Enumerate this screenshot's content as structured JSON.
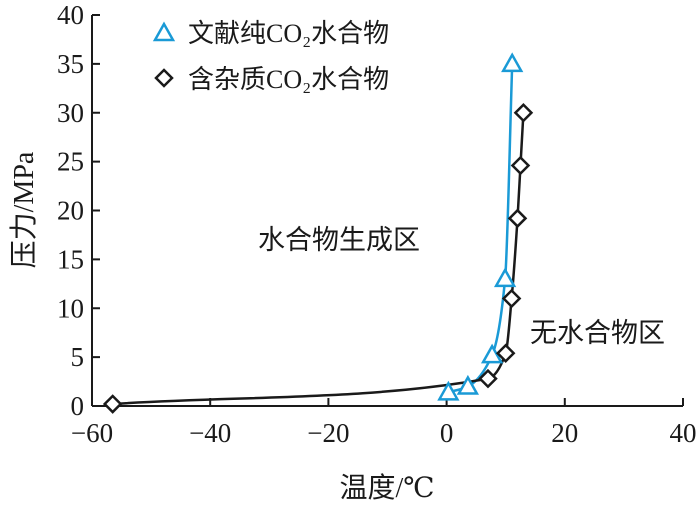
{
  "chart_data": {
    "type": "line",
    "xlabel": "温度/℃",
    "ylabel": "压力/MPa",
    "xlim": [
      -60,
      40
    ],
    "ylim": [
      0,
      40
    ],
    "xticks": [
      "−60",
      "−40",
      "−20",
      "0",
      "20",
      "40"
    ],
    "yticks": [
      "0",
      "5",
      "10",
      "15",
      "20",
      "25",
      "30",
      "35",
      "40"
    ],
    "legend": {
      "placement": "top-center"
    },
    "series": [
      {
        "name": "文献纯CO₂水合物",
        "marker": "triangle",
        "color": "#1a9ad6",
        "x": [
          0.3,
          3.6,
          7.7,
          9.9,
          11.1
        ],
        "y": [
          1.4,
          2.0,
          5.2,
          13.0,
          35.0
        ]
      },
      {
        "name": "含杂质CO₂水合物",
        "marker": "diamond",
        "color": "#1a1a1a",
        "x": [
          -56.5,
          7.0,
          10.0,
          11.0,
          12.0,
          12.5,
          13.0
        ],
        "y": [
          0.2,
          2.8,
          5.4,
          11.0,
          19.2,
          24.6,
          30.0
        ]
      }
    ],
    "annotations": [
      "水合物生成区",
      "无水合物区"
    ]
  }
}
